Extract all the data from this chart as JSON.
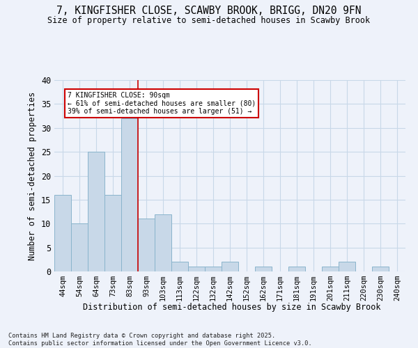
{
  "title1": "7, KINGFISHER CLOSE, SCAWBY BROOK, BRIGG, DN20 9FN",
  "title2": "Size of property relative to semi-detached houses in Scawby Brook",
  "xlabel": "Distribution of semi-detached houses by size in Scawby Brook",
  "ylabel": "Number of semi-detached properties",
  "footer": "Contains HM Land Registry data © Crown copyright and database right 2025.\nContains public sector information licensed under the Open Government Licence v3.0.",
  "categories": [
    "44sqm",
    "54sqm",
    "64sqm",
    "73sqm",
    "83sqm",
    "93sqm",
    "103sqm",
    "113sqm",
    "122sqm",
    "132sqm",
    "142sqm",
    "152sqm",
    "162sqm",
    "171sqm",
    "181sqm",
    "191sqm",
    "201sqm",
    "211sqm",
    "220sqm",
    "230sqm",
    "240sqm"
  ],
  "values": [
    16,
    10,
    25,
    16,
    32,
    11,
    12,
    2,
    1,
    1,
    2,
    0,
    1,
    0,
    1,
    0,
    1,
    2,
    0,
    1,
    0
  ],
  "bar_color": "#c8d8e8",
  "bar_edge_color": "#8ab4cc",
  "bar_edge_width": 0.7,
  "grid_color": "#c8d8e8",
  "background_color": "#eef2fa",
  "annotation_text_line1": "7 KINGFISHER CLOSE: 90sqm",
  "annotation_text_line2": "← 61% of semi-detached houses are smaller (80)",
  "annotation_text_line3": "39% of semi-detached houses are larger (51) →",
  "redline_x": 4.5,
  "redline_color": "#cc0000",
  "annotation_box_color": "#ffffff",
  "annotation_box_edge_color": "#cc0000",
  "ylim": [
    0,
    40
  ],
  "yticks": [
    0,
    5,
    10,
    15,
    20,
    25,
    30,
    35,
    40
  ]
}
